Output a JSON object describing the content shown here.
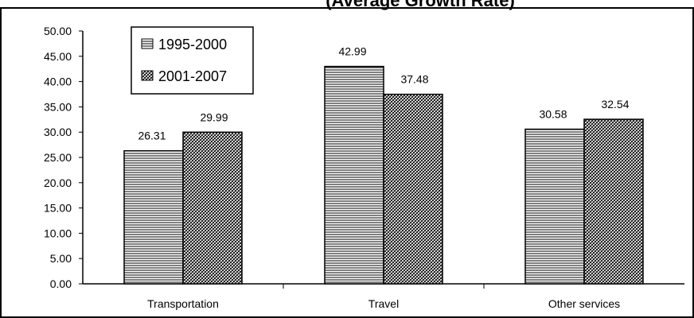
{
  "chart_data": {
    "type": "bar",
    "title": "(Average Growth Rate)",
    "xlabel": "",
    "ylabel": "",
    "categories": [
      "Transportation",
      "Travel",
      "Other services"
    ],
    "series": [
      {
        "name": "1995-2000",
        "values": [
          26.31,
          42.99,
          30.58
        ],
        "pattern": "horizontal-lines"
      },
      {
        "name": "2001-2007",
        "values": [
          29.99,
          37.48,
          32.54
        ],
        "pattern": "diagonal-crosshatch"
      }
    ],
    "ylim": [
      0,
      50
    ],
    "yticks": [
      "0.00",
      "5.00",
      "10.00",
      "15.00",
      "20.00",
      "25.00",
      "30.00",
      "35.00",
      "40.00",
      "45.00",
      "50.00"
    ],
    "data_labels": true,
    "legend_position": "top-left",
    "grid": false
  }
}
